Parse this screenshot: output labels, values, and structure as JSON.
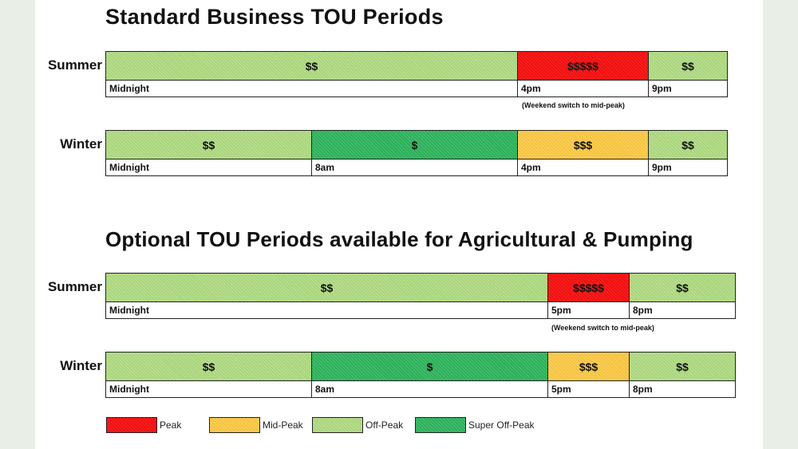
{
  "section1": {
    "title": "Standard Business TOU Periods",
    "summer": {
      "label": "Summer",
      "segments": [
        "$$",
        "$$$$$",
        "$$"
      ],
      "times": [
        "Midnight",
        "4pm",
        "9pm"
      ],
      "note": "(Weekend switch to mid-peak)"
    },
    "winter": {
      "label": "Winter",
      "segments": [
        "$$",
        "$",
        "$$$",
        "$$"
      ],
      "times": [
        "Midnight",
        "8am",
        "4pm",
        "9pm"
      ]
    }
  },
  "section2": {
    "title": "Optional TOU Periods available for Agricultural & Pumping",
    "summer": {
      "label": "Summer",
      "segments": [
        "$$",
        "$$$$$",
        "$$"
      ],
      "times": [
        "Midnight",
        "5pm",
        "8pm"
      ],
      "note": "(Weekend switch to mid-peak)"
    },
    "winter": {
      "label": "Winter",
      "segments": [
        "$$",
        "$",
        "$$$",
        "$$"
      ],
      "times": [
        "Midnight",
        "8am",
        "5pm",
        "8pm"
      ]
    }
  },
  "legend": [
    {
      "label": "Peak",
      "color": "#f20f0f"
    },
    {
      "label": "Mid-Peak",
      "color": "#f6c33a"
    },
    {
      "label": "Off-Peak",
      "color": "#a9d57a"
    },
    {
      "label": "Super Off-Peak",
      "color": "#29b058"
    }
  ]
}
